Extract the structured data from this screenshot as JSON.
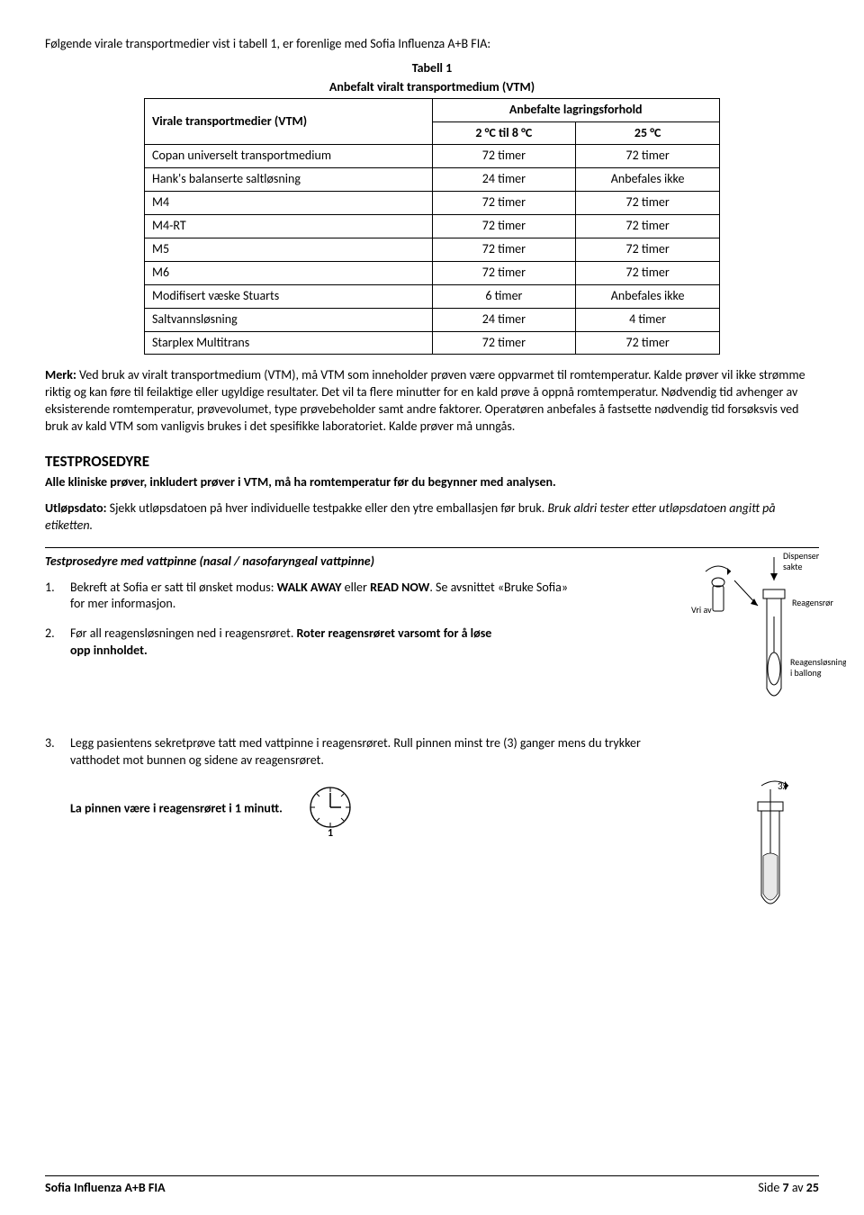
{
  "intro": "Følgende virale transportmedier vist i tabell 1, er forenlige med Sofia Influenza A+B FIA:",
  "table": {
    "title_line1": "Tabell 1",
    "title_line2": "Anbefalt viralt transportmedium (VTM)",
    "header_left": "Virale transportmedier (VTM)",
    "header_right_span": "Anbefalte lagringsforhold",
    "header_col2": "2 °C til 8 °C",
    "header_col3": "25 °C",
    "rows": [
      {
        "c1": "Copan universelt transportmedium",
        "c2": "72 timer",
        "c3": "72 timer"
      },
      {
        "c1": "Hank's balanserte saltløsning",
        "c2": "24 timer",
        "c3": "Anbefales ikke"
      },
      {
        "c1": "M4",
        "c2": "72 timer",
        "c3": "72 timer"
      },
      {
        "c1": "M4-RT",
        "c2": "72 timer",
        "c3": "72 timer"
      },
      {
        "c1": "M5",
        "c2": "72 timer",
        "c3": "72 timer"
      },
      {
        "c1": "M6",
        "c2": "72 timer",
        "c3": "72 timer"
      },
      {
        "c1": "Modifisert væske Stuarts",
        "c2": "6 timer",
        "c3": "Anbefales ikke"
      },
      {
        "c1": "Saltvannsløsning",
        "c2": "24 timer",
        "c3": "4 timer"
      },
      {
        "c1": "Starplex Multitrans",
        "c2": "72 timer",
        "c3": "72 timer"
      }
    ]
  },
  "merk_label": "Merk:",
  "merk_body": " Ved bruk av viralt transportmedium (VTM), må VTM som inneholder prøven være oppvarmet til romtemperatur. Kalde prøver vil ikke strømme riktig og kan føre til feilaktige eller ugyldige resultater. Det vil ta flere minutter for en kald prøve å oppnå romtemperatur. Nødvendig tid avhenger av eksisterende romtemperatur, prøvevolumet, type prøvebeholder samt andre faktorer. Operatøren anbefales å fastsette nødvendig tid forsøksvis ved bruk av kald VTM som vanligvis brukes i det spesifikke laboratoriet. Kalde prøver må unngås.",
  "testprosedyre": {
    "heading": "TESTPROSEDYRE",
    "line1": "Alle kliniske prøver, inkludert prøver i VTM, må ha romtemperatur før du begynner med analysen.",
    "utlops_label": "Utløpsdato:",
    "utlops_text1": " Sjekk utløpsdatoen på hver individuelle testpakke eller den ytre emballasjen før bruk. ",
    "utlops_italic": "Bruk aldri tester etter utløpsdatoen angitt på etiketten."
  },
  "sub_heading": "Testprosedyre med vattpinne (nasal / nasofaryngeal vattpinne)",
  "steps": {
    "s1_num": "1.",
    "s1_a": "Bekreft at Sofia er satt til ønsket modus: ",
    "s1_b": "WALK AWAY",
    "s1_c": " eller ",
    "s1_d": "READ NOW",
    "s1_e": ". Se avsnittet «Bruke Sofia» for mer informasjon.",
    "s2_num": "2.",
    "s2_a": "Før all reagensløsningen ned i reagensrøret. ",
    "s2_b": "Roter reagensrøret varsomt for å løse opp innholdet.",
    "s3_num": "3.",
    "s3_a": "Legg pasientens sekretprøve tatt med vattpinne i reagensrøret. Rull pinnen minst tre (3) ganger mens du trykker vatthodet mot bunnen og sidene av reagensrøret.",
    "s3_b": "La pinnen være i reagensrøret i 1 minutt."
  },
  "diagram_labels": {
    "vri_av": "Vri av",
    "dispenser": "Dispenser sakte",
    "reagensror": "Reagensrør",
    "reagenslosning": "Reagensløsning i ballong",
    "three_x": "3x"
  },
  "footer": {
    "left": "Sofia Influenza A+B FIA",
    "right_a": "Side ",
    "right_b": "7",
    "right_c": " av ",
    "right_d": "25"
  }
}
